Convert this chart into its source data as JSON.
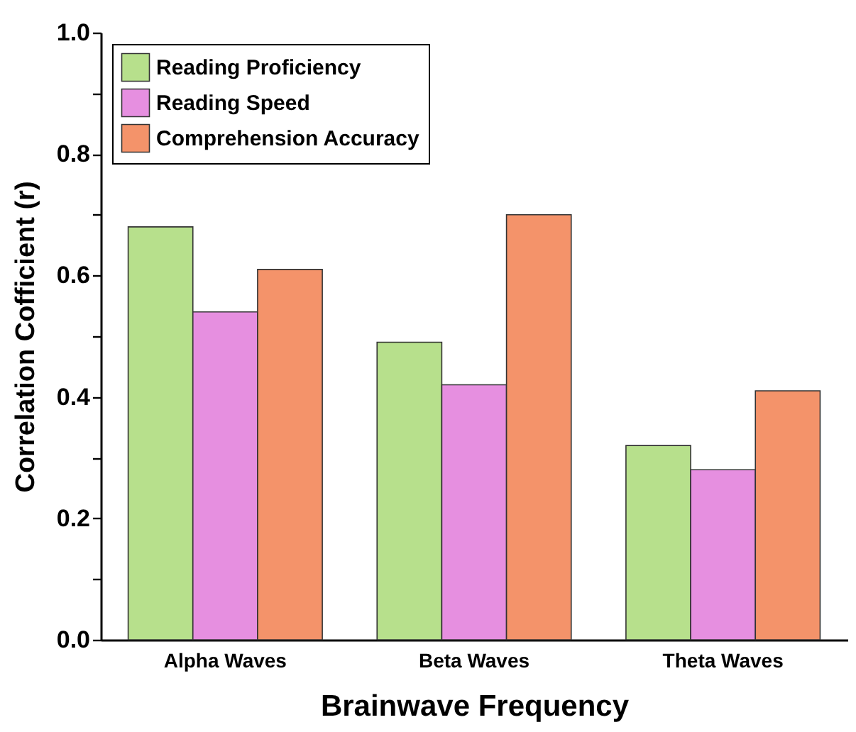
{
  "chart_data": {
    "type": "bar",
    "xlabel": "Brainwave Frequency",
    "ylabel": "Correlation Cofficient (r)",
    "categories": [
      "Alpha Waves",
      "Beta Waves",
      "Theta Waves"
    ],
    "series": [
      {
        "name": "Reading Proficiency",
        "color": "#b7e08c",
        "values": [
          0.68,
          0.49,
          0.32
        ]
      },
      {
        "name": "Reading Speed",
        "color": "#e68fe0",
        "values": [
          0.54,
          0.42,
          0.28
        ]
      },
      {
        "name": "Comprehension Accuracy",
        "color": "#f4936a",
        "values": [
          0.61,
          0.7,
          0.41
        ]
      }
    ],
    "ylim": [
      0,
      1
    ],
    "yticks": [
      {
        "value": 0,
        "label": "0.0"
      },
      {
        "value": 0.1,
        "label": null
      },
      0.2,
      {
        "value": 0.3,
        "label": null
      },
      0.4,
      {
        "value": 0.5,
        "label": null
      },
      0.6,
      {
        "value": 0.7,
        "label": null
      },
      0.8,
      {
        "value": 0.9,
        "label": null
      },
      {
        "value": 1,
        "label": "1.0"
      }
    ],
    "legend": "top left",
    "grid": false
  }
}
